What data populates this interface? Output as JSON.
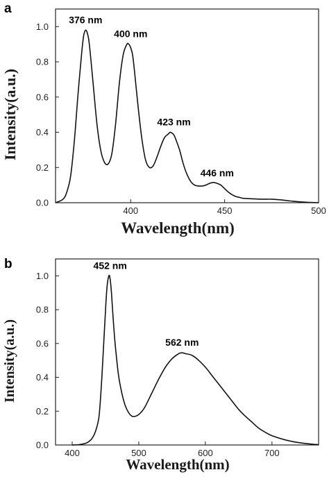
{
  "chart_data": [
    {
      "panel": "a",
      "type": "line",
      "xlabel": "Wavelength(nm)",
      "ylabel": "Intensity(a.u.)",
      "xlim": [
        360,
        500
      ],
      "ylim": [
        0,
        1.1
      ],
      "xticks": [
        400,
        450,
        500
      ],
      "xtick_labels": [
        "400",
        "450",
        "500"
      ],
      "yticks": [
        0.0,
        0.2,
        0.4,
        0.6,
        0.8,
        1.0
      ],
      "ytick_labels": [
        "0.0",
        "0.2",
        "0.4",
        "0.6",
        "0.8",
        "1.0"
      ],
      "grid": false,
      "series": [
        {
          "x": [
            360,
            364,
            366,
            368,
            370,
            372,
            374,
            375,
            376,
            377,
            378,
            380,
            382,
            384,
            386,
            388,
            390,
            392,
            394,
            396,
            398,
            399,
            400,
            401,
            402,
            404,
            406,
            408,
            410,
            412,
            414,
            416,
            418,
            420,
            421,
            422,
            423,
            424,
            426,
            428,
            430,
            432,
            434,
            436,
            438,
            440,
            442,
            444,
            446,
            448,
            450,
            452,
            454,
            456,
            458,
            460,
            465,
            470,
            475,
            480,
            485,
            490,
            495,
            500
          ],
          "y": [
            0.0,
            0.02,
            0.06,
            0.15,
            0.35,
            0.62,
            0.86,
            0.95,
            0.98,
            0.96,
            0.9,
            0.68,
            0.45,
            0.3,
            0.23,
            0.22,
            0.28,
            0.45,
            0.68,
            0.84,
            0.9,
            0.9,
            0.88,
            0.84,
            0.75,
            0.54,
            0.36,
            0.24,
            0.2,
            0.21,
            0.26,
            0.32,
            0.37,
            0.39,
            0.4,
            0.395,
            0.385,
            0.36,
            0.3,
            0.22,
            0.16,
            0.12,
            0.1,
            0.095,
            0.095,
            0.1,
            0.11,
            0.115,
            0.11,
            0.1,
            0.08,
            0.06,
            0.045,
            0.035,
            0.03,
            0.025,
            0.022,
            0.02,
            0.02,
            0.016,
            0.01,
            0.005,
            0.002,
            0.0
          ]
        }
      ],
      "annotations": [
        {
          "text": "376 nm",
          "x": 376,
          "y": 0.98
        },
        {
          "text": "400 nm",
          "x": 400,
          "y": 0.9
        },
        {
          "text": "423 nm",
          "x": 423,
          "y": 0.4
        },
        {
          "text": "446 nm",
          "x": 446,
          "y": 0.11
        }
      ]
    },
    {
      "panel": "b",
      "type": "line",
      "xlabel": "Wavelength(nm)",
      "ylabel": "Intensity(a.u.)",
      "xlim": [
        375,
        770
      ],
      "ylim": [
        0,
        1.1
      ],
      "xticks": [
        400,
        500,
        600,
        700
      ],
      "xtick_labels": [
        "400",
        "500",
        "600",
        "700"
      ],
      "yticks": [
        0.0,
        0.2,
        0.4,
        0.6,
        0.8,
        1.0
      ],
      "ytick_labels": [
        "0.0",
        "0.2",
        "0.4",
        "0.6",
        "0.8",
        "1.0"
      ],
      "grid": false,
      "series": [
        {
          "x": [
            400,
            410,
            420,
            425,
            430,
            435,
            440,
            443,
            446,
            449,
            452,
            455,
            457,
            459,
            461,
            464,
            467,
            470,
            475,
            480,
            485,
            490,
            495,
            500,
            505,
            510,
            520,
            530,
            540,
            550,
            560,
            565,
            570,
            580,
            590,
            600,
            610,
            620,
            630,
            640,
            650,
            660,
            670,
            680,
            690,
            700,
            720,
            740,
            760,
            770
          ],
          "y": [
            0.0,
            0.002,
            0.01,
            0.02,
            0.04,
            0.08,
            0.16,
            0.3,
            0.5,
            0.72,
            0.92,
            1.0,
            0.98,
            0.9,
            0.78,
            0.62,
            0.5,
            0.4,
            0.3,
            0.23,
            0.19,
            0.17,
            0.17,
            0.18,
            0.2,
            0.23,
            0.31,
            0.39,
            0.46,
            0.51,
            0.54,
            0.545,
            0.54,
            0.53,
            0.5,
            0.46,
            0.41,
            0.36,
            0.31,
            0.26,
            0.21,
            0.17,
            0.135,
            0.1,
            0.075,
            0.055,
            0.03,
            0.014,
            0.005,
            0.002
          ]
        }
      ],
      "annotations": [
        {
          "text": "452 nm",
          "x": 457,
          "y": 1.0
        },
        {
          "text": "562 nm",
          "x": 565,
          "y": 0.545
        }
      ]
    }
  ]
}
